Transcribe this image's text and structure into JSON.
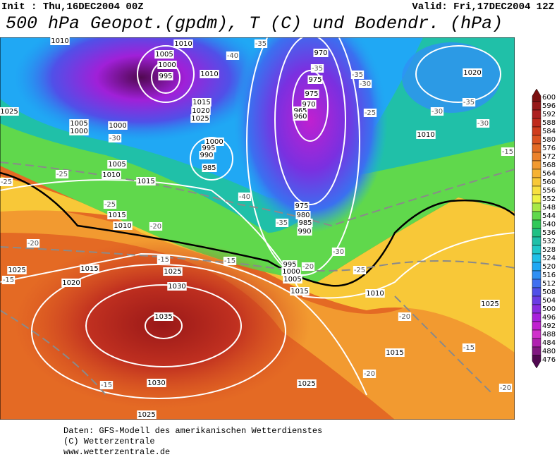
{
  "header": {
    "init": "Init : Thu,16DEC2004 00Z",
    "valid": "Valid: Fri,17DEC2004 12Z",
    "title": "500 hPa Geopot.(gpdm), T (C) und Bodendr. (hPa)"
  },
  "colorbar": {
    "labels": [
      600,
      596,
      592,
      588,
      584,
      580,
      576,
      572,
      568,
      564,
      560,
      556,
      552,
      548,
      544,
      540,
      536,
      532,
      528,
      524,
      520,
      516,
      512,
      508,
      504,
      500,
      496,
      492,
      488,
      484,
      480,
      476
    ],
    "colors": [
      "#7a1010",
      "#961818",
      "#ad2020",
      "#c02a1c",
      "#d03c1c",
      "#dc5220",
      "#e46a24",
      "#ec822a",
      "#f29a30",
      "#f6b234",
      "#f8c838",
      "#f8e040",
      "#eef244",
      "#a8e848",
      "#60d84c",
      "#30c858",
      "#20c084",
      "#20c0a8",
      "#20c8c8",
      "#20c0e8",
      "#20a8f4",
      "#3090f4",
      "#4070f0",
      "#5050e8",
      "#6a3ce4",
      "#8a2ce0",
      "#a820dc",
      "#c020d0",
      "#d030cc",
      "#b020b0",
      "#801880",
      "#500850"
    ]
  },
  "map_labels": {
    "pressure": [
      1010,
      1010,
      1005,
      1000,
      995,
      1010,
      1015,
      1020,
      1025,
      1000,
      995,
      990,
      985,
      1005,
      1000,
      1000,
      1005,
      1010,
      1015,
      1025,
      970,
      975,
      975,
      970,
      965,
      960,
      975,
      980,
      985,
      990,
      995,
      1000,
      1005,
      1015,
      1010,
      1010,
      1020,
      1015,
      1010,
      1015,
      1020,
      1025,
      1025,
      1030,
      1035,
      1030,
      1025,
      1025,
      1015,
      1025
    ],
    "temperature": [
      -40,
      -35,
      -35,
      -35,
      -30,
      -25,
      -30,
      -35,
      -30,
      -15,
      -30,
      -25,
      -25,
      -40,
      -35,
      -30,
      -25,
      -20,
      -15,
      -15,
      -20,
      -25,
      -20,
      -15,
      -20,
      -15,
      -20,
      -15,
      -20
    ]
  },
  "footer": {
    "lines": [
      "Daten: GFS-Modell des amerikanischen Wetterdienstes",
      "(C) Wetterzentrale",
      "www.wetterzentrale.de"
    ]
  }
}
